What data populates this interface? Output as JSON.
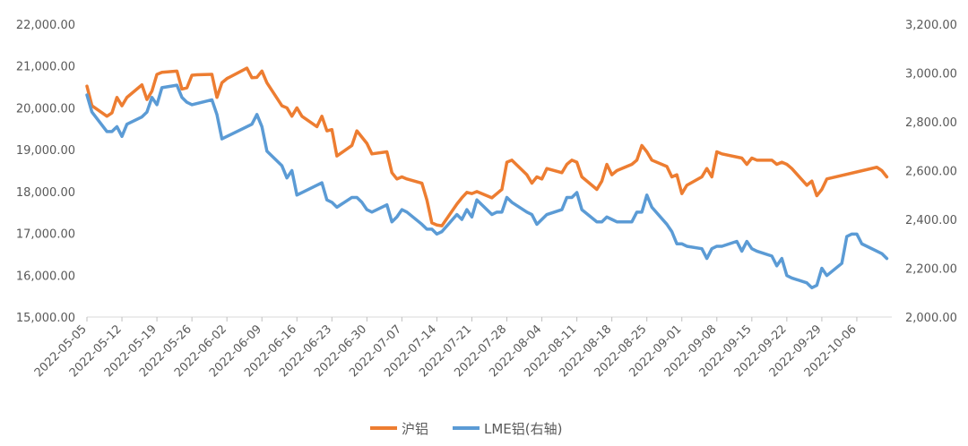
{
  "chart_data": {
    "type": "line",
    "title": "",
    "xlabel": "",
    "ylabel": "",
    "y2label": "",
    "grid": false,
    "legend_position": "bottom",
    "x_tick_labels": [
      "2022-05-05",
      "2022-05-12",
      "2022-05-19",
      "2022-05-26",
      "2022-06-02",
      "2022-06-09",
      "2022-06-16",
      "2022-06-23",
      "2022-06-30",
      "2022-07-07",
      "2022-07-14",
      "2022-07-21",
      "2022-07-28",
      "2022-08-04",
      "2022-08-11",
      "2022-08-18",
      "2022-08-25",
      "2022-09-01",
      "2022-09-08",
      "2022-09-15",
      "2022-09-22",
      "2022-09-29",
      "2022-10-06"
    ],
    "y_left": {
      "min": 15000,
      "max": 22000,
      "step": 1000,
      "tick_labels": [
        "15,000.00",
        "16,000.00",
        "17,000.00",
        "18,000.00",
        "19,000.00",
        "20,000.00",
        "21,000.00",
        "22,000.00"
      ]
    },
    "y_right": {
      "min": 2000,
      "max": 3200,
      "step": 200,
      "tick_labels": [
        "2,000.00",
        "2,200.00",
        "2,400.00",
        "2,600.00",
        "2,800.00",
        "3,000.00",
        "3,200.00"
      ]
    },
    "series": [
      {
        "name": "沪铝",
        "axis": "left",
        "color": "#ED7D31",
        "points": [
          [
            "2022-05-05",
            20520
          ],
          [
            "2022-05-06",
            20050
          ],
          [
            "2022-05-09",
            19800
          ],
          [
            "2022-05-10",
            19880
          ],
          [
            "2022-05-11",
            20250
          ],
          [
            "2022-05-12",
            20050
          ],
          [
            "2022-05-13",
            20250
          ],
          [
            "2022-05-16",
            20550
          ],
          [
            "2022-05-17",
            20200
          ],
          [
            "2022-05-18",
            20400
          ],
          [
            "2022-05-19",
            20800
          ],
          [
            "2022-05-20",
            20850
          ],
          [
            "2022-05-23",
            20880
          ],
          [
            "2022-05-24",
            20450
          ],
          [
            "2022-05-25",
            20480
          ],
          [
            "2022-05-26",
            20780
          ],
          [
            "2022-05-27",
            20790
          ],
          [
            "2022-05-30",
            20800
          ],
          [
            "2022-05-31",
            20250
          ],
          [
            "2022-06-01",
            20600
          ],
          [
            "2022-06-02",
            20700
          ],
          [
            "2022-06-06",
            20950
          ],
          [
            "2022-06-07",
            20720
          ],
          [
            "2022-06-08",
            20730
          ],
          [
            "2022-06-09",
            20880
          ],
          [
            "2022-06-10",
            20600
          ],
          [
            "2022-06-13",
            20050
          ],
          [
            "2022-06-14",
            20000
          ],
          [
            "2022-06-15",
            19800
          ],
          [
            "2022-06-16",
            20000
          ],
          [
            "2022-06-17",
            19800
          ],
          [
            "2022-06-20",
            19550
          ],
          [
            "2022-06-21",
            19800
          ],
          [
            "2022-06-22",
            19450
          ],
          [
            "2022-06-23",
            19480
          ],
          [
            "2022-06-24",
            18850
          ],
          [
            "2022-06-27",
            19100
          ],
          [
            "2022-06-28",
            19450
          ],
          [
            "2022-06-29",
            19300
          ],
          [
            "2022-06-30",
            19150
          ],
          [
            "2022-07-01",
            18900
          ],
          [
            "2022-07-04",
            18950
          ],
          [
            "2022-07-05",
            18450
          ],
          [
            "2022-07-06",
            18300
          ],
          [
            "2022-07-07",
            18350
          ],
          [
            "2022-07-08",
            18300
          ],
          [
            "2022-07-11",
            18200
          ],
          [
            "2022-07-12",
            17800
          ],
          [
            "2022-07-13",
            17250
          ],
          [
            "2022-07-14",
            17200
          ],
          [
            "2022-07-15",
            17180
          ],
          [
            "2022-07-18",
            17700
          ],
          [
            "2022-07-19",
            17850
          ],
          [
            "2022-07-20",
            17980
          ],
          [
            "2022-07-21",
            17950
          ],
          [
            "2022-07-22",
            18000
          ],
          [
            "2022-07-25",
            17850
          ],
          [
            "2022-07-26",
            17950
          ],
          [
            "2022-07-27",
            18050
          ],
          [
            "2022-07-28",
            18700
          ],
          [
            "2022-07-29",
            18750
          ],
          [
            "2022-08-01",
            18400
          ],
          [
            "2022-08-02",
            18200
          ],
          [
            "2022-08-03",
            18350
          ],
          [
            "2022-08-04",
            18300
          ],
          [
            "2022-08-05",
            18550
          ],
          [
            "2022-08-08",
            18450
          ],
          [
            "2022-08-09",
            18650
          ],
          [
            "2022-08-10",
            18750
          ],
          [
            "2022-08-11",
            18700
          ],
          [
            "2022-08-12",
            18350
          ],
          [
            "2022-08-15",
            18050
          ],
          [
            "2022-08-16",
            18250
          ],
          [
            "2022-08-17",
            18650
          ],
          [
            "2022-08-18",
            18400
          ],
          [
            "2022-08-19",
            18500
          ],
          [
            "2022-08-22",
            18650
          ],
          [
            "2022-08-23",
            18750
          ],
          [
            "2022-08-24",
            19100
          ],
          [
            "2022-08-25",
            18950
          ],
          [
            "2022-08-26",
            18750
          ],
          [
            "2022-08-29",
            18600
          ],
          [
            "2022-08-30",
            18350
          ],
          [
            "2022-08-31",
            18400
          ],
          [
            "2022-09-01",
            17950
          ],
          [
            "2022-09-02",
            18150
          ],
          [
            "2022-09-05",
            18350
          ],
          [
            "2022-09-06",
            18550
          ],
          [
            "2022-09-07",
            18350
          ],
          [
            "2022-09-08",
            18950
          ],
          [
            "2022-09-09",
            18900
          ],
          [
            "2022-09-13",
            18800
          ],
          [
            "2022-09-14",
            18650
          ],
          [
            "2022-09-15",
            18800
          ],
          [
            "2022-09-16",
            18750
          ],
          [
            "2022-09-19",
            18750
          ],
          [
            "2022-09-20",
            18650
          ],
          [
            "2022-09-21",
            18700
          ],
          [
            "2022-09-22",
            18650
          ],
          [
            "2022-09-23",
            18550
          ],
          [
            "2022-09-26",
            18150
          ],
          [
            "2022-09-27",
            18250
          ],
          [
            "2022-09-28",
            17900
          ],
          [
            "2022-09-29",
            18050
          ],
          [
            "2022-09-30",
            18300
          ],
          [
            "2022-10-10",
            18580
          ],
          [
            "2022-10-11",
            18500
          ],
          [
            "2022-10-12",
            18350
          ]
        ]
      },
      {
        "name": "LME铝(右轴)",
        "axis": "right",
        "color": "#5B9BD5",
        "points": [
          [
            "2022-05-05",
            2910
          ],
          [
            "2022-05-06",
            2840
          ],
          [
            "2022-05-09",
            2760
          ],
          [
            "2022-05-10",
            2760
          ],
          [
            "2022-05-11",
            2780
          ],
          [
            "2022-05-12",
            2740
          ],
          [
            "2022-05-13",
            2790
          ],
          [
            "2022-05-16",
            2820
          ],
          [
            "2022-05-17",
            2840
          ],
          [
            "2022-05-18",
            2900
          ],
          [
            "2022-05-19",
            2870
          ],
          [
            "2022-05-20",
            2940
          ],
          [
            "2022-05-23",
            2950
          ],
          [
            "2022-05-24",
            2900
          ],
          [
            "2022-05-25",
            2880
          ],
          [
            "2022-05-26",
            2870
          ],
          [
            "2022-05-30",
            2890
          ],
          [
            "2022-05-31",
            2830
          ],
          [
            "2022-06-01",
            2730
          ],
          [
            "2022-06-02",
            2740
          ],
          [
            "2022-06-06",
            2780
          ],
          [
            "2022-06-07",
            2790
          ],
          [
            "2022-06-08",
            2830
          ],
          [
            "2022-06-09",
            2780
          ],
          [
            "2022-06-10",
            2680
          ],
          [
            "2022-06-13",
            2620
          ],
          [
            "2022-06-14",
            2570
          ],
          [
            "2022-06-15",
            2600
          ],
          [
            "2022-06-16",
            2500
          ],
          [
            "2022-06-17",
            2510
          ],
          [
            "2022-06-20",
            2540
          ],
          [
            "2022-06-21",
            2550
          ],
          [
            "2022-06-22",
            2480
          ],
          [
            "2022-06-23",
            2470
          ],
          [
            "2022-06-24",
            2450
          ],
          [
            "2022-06-27",
            2490
          ],
          [
            "2022-06-28",
            2490
          ],
          [
            "2022-06-29",
            2470
          ],
          [
            "2022-06-30",
            2440
          ],
          [
            "2022-07-01",
            2430
          ],
          [
            "2022-07-04",
            2460
          ],
          [
            "2022-07-05",
            2390
          ],
          [
            "2022-07-06",
            2410
          ],
          [
            "2022-07-07",
            2440
          ],
          [
            "2022-07-08",
            2430
          ],
          [
            "2022-07-11",
            2380
          ],
          [
            "2022-07-12",
            2360
          ],
          [
            "2022-07-13",
            2360
          ],
          [
            "2022-07-14",
            2340
          ],
          [
            "2022-07-15",
            2350
          ],
          [
            "2022-07-18",
            2420
          ],
          [
            "2022-07-19",
            2400
          ],
          [
            "2022-07-20",
            2440
          ],
          [
            "2022-07-21",
            2410
          ],
          [
            "2022-07-22",
            2480
          ],
          [
            "2022-07-25",
            2420
          ],
          [
            "2022-07-26",
            2430
          ],
          [
            "2022-07-27",
            2430
          ],
          [
            "2022-07-28",
            2490
          ],
          [
            "2022-07-29",
            2470
          ],
          [
            "2022-08-01",
            2430
          ],
          [
            "2022-08-02",
            2420
          ],
          [
            "2022-08-03",
            2380
          ],
          [
            "2022-08-04",
            2400
          ],
          [
            "2022-08-05",
            2420
          ],
          [
            "2022-08-08",
            2440
          ],
          [
            "2022-08-09",
            2490
          ],
          [
            "2022-08-10",
            2490
          ],
          [
            "2022-08-11",
            2510
          ],
          [
            "2022-08-12",
            2440
          ],
          [
            "2022-08-15",
            2390
          ],
          [
            "2022-08-16",
            2390
          ],
          [
            "2022-08-17",
            2410
          ],
          [
            "2022-08-18",
            2400
          ],
          [
            "2022-08-19",
            2390
          ],
          [
            "2022-08-22",
            2390
          ],
          [
            "2022-08-23",
            2430
          ],
          [
            "2022-08-24",
            2430
          ],
          [
            "2022-08-25",
            2500
          ],
          [
            "2022-08-26",
            2450
          ],
          [
            "2022-08-29",
            2380
          ],
          [
            "2022-08-30",
            2350
          ],
          [
            "2022-08-31",
            2300
          ],
          [
            "2022-09-01",
            2300
          ],
          [
            "2022-09-02",
            2290
          ],
          [
            "2022-09-05",
            2280
          ],
          [
            "2022-09-06",
            2240
          ],
          [
            "2022-09-07",
            2280
          ],
          [
            "2022-09-08",
            2290
          ],
          [
            "2022-09-09",
            2290
          ],
          [
            "2022-09-12",
            2310
          ],
          [
            "2022-09-13",
            2270
          ],
          [
            "2022-09-14",
            2310
          ],
          [
            "2022-09-15",
            2280
          ],
          [
            "2022-09-16",
            2270
          ],
          [
            "2022-09-19",
            2250
          ],
          [
            "2022-09-20",
            2210
          ],
          [
            "2022-09-21",
            2240
          ],
          [
            "2022-09-22",
            2170
          ],
          [
            "2022-09-23",
            2160
          ],
          [
            "2022-09-26",
            2140
          ],
          [
            "2022-09-27",
            2120
          ],
          [
            "2022-09-28",
            2130
          ],
          [
            "2022-09-29",
            2200
          ],
          [
            "2022-09-30",
            2170
          ],
          [
            "2022-10-03",
            2220
          ],
          [
            "2022-10-04",
            2330
          ],
          [
            "2022-10-05",
            2340
          ],
          [
            "2022-10-06",
            2340
          ],
          [
            "2022-10-07",
            2300
          ],
          [
            "2022-10-10",
            2270
          ],
          [
            "2022-10-11",
            2260
          ],
          [
            "2022-10-12",
            2240
          ]
        ]
      }
    ]
  }
}
